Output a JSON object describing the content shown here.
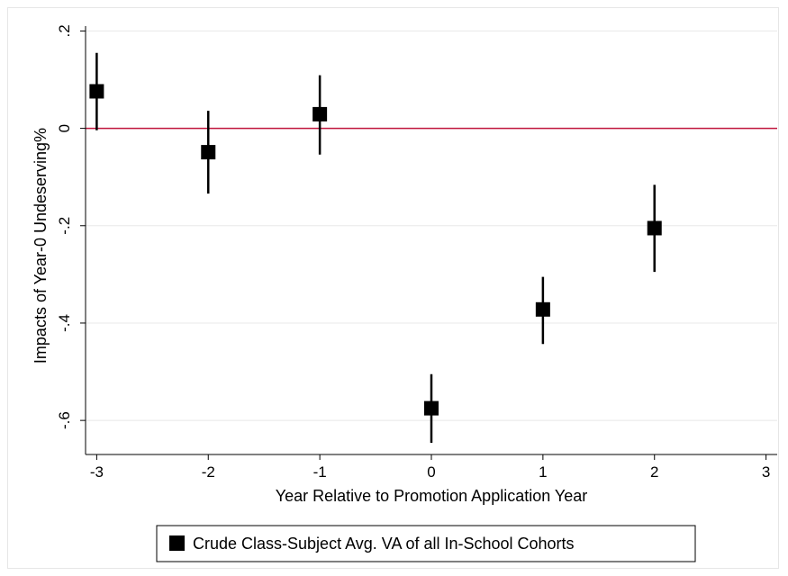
{
  "chart_data": {
    "type": "scatter",
    "xlabel": "Year Relative to Promotion Application Year",
    "ylabel": "Impacts of Year-0 Undeserving%",
    "xlim": [
      -3.1,
      3.1
    ],
    "ylim": [
      -0.67,
      0.21
    ],
    "xticks": [
      -3,
      -2,
      -1,
      0,
      1,
      2,
      3
    ],
    "xtick_labels": [
      "-3",
      "-2",
      "-1",
      "0",
      "1",
      "2",
      "3"
    ],
    "yticks": [
      0.2,
      0,
      -0.2,
      -0.4,
      -0.6
    ],
    "ytick_labels": [
      ".2",
      "0",
      "-.2",
      "-.4",
      "-.6"
    ],
    "grid": true,
    "reference_line": {
      "y": 0,
      "color": "#c0143c"
    },
    "legend": {
      "position": "bottom-center"
    },
    "series": [
      {
        "name": "Crude Class-Subject Avg. VA of all In-School Cohorts",
        "color": "#000000",
        "marker": "square",
        "x": [
          -3,
          -2,
          -1,
          0,
          1,
          2
        ],
        "y": [
          0.076,
          -0.049,
          0.029,
          -0.575,
          -0.372,
          -0.205
        ],
        "ci_low": [
          -0.004,
          -0.134,
          -0.054,
          -0.646,
          -0.443,
          -0.295
        ],
        "ci_high": [
          0.155,
          0.036,
          0.109,
          -0.505,
          -0.305,
          -0.116
        ]
      }
    ]
  }
}
